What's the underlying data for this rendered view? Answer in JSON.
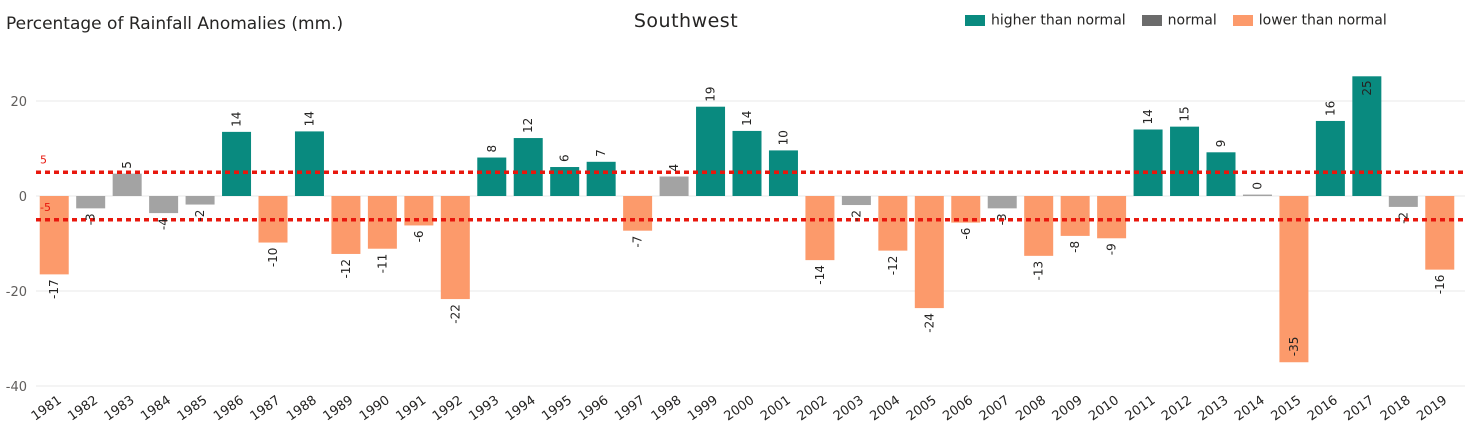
{
  "chart_data": {
    "type": "bar",
    "title": "Southwest",
    "ylabel": "Percentage of Rainfall Anomalies (mm.)",
    "xlabel": "",
    "ylim": [
      -40,
      25
    ],
    "yticks": [
      -40,
      -20,
      0,
      20
    ],
    "grid": true,
    "legend_position": "top-right",
    "legend": [
      {
        "key": "higher",
        "label": "higher than normal",
        "color": "#098A7F"
      },
      {
        "key": "normal",
        "label": "normal",
        "color": "#6B6B6B"
      },
      {
        "key": "lower",
        "label": "lower than normal",
        "color": "#FC9A6B"
      }
    ],
    "category_colors": {
      "higher": "#098A7F",
      "normal": "#A3A3A3",
      "lower": "#FC9A6B"
    },
    "reference_lines": [
      {
        "value": 5,
        "label": "5",
        "color": "#E8170D",
        "style": "dotted"
      },
      {
        "value": -5,
        "label": "-5",
        "color": "#E8170D",
        "style": "dotted"
      }
    ],
    "categories": [
      "1981",
      "1982",
      "1983",
      "1984",
      "1985",
      "1986",
      "1987",
      "1988",
      "1989",
      "1990",
      "1991",
      "1992",
      "1993",
      "1994",
      "1995",
      "1996",
      "1997",
      "1998",
      "1999",
      "2000",
      "2001",
      "2002",
      "2003",
      "2004",
      "2005",
      "2006",
      "2007",
      "2008",
      "2009",
      "2010",
      "2011",
      "2012",
      "2013",
      "2014",
      "2015",
      "2016",
      "2017",
      "2018",
      "2019"
    ],
    "values": [
      -16.5,
      -2.6,
      4.7,
      -3.6,
      -1.8,
      13.5,
      -9.8,
      13.6,
      -12.2,
      -11.1,
      -6.2,
      -21.7,
      8.1,
      12.2,
      6.1,
      7.2,
      -7.3,
      4.1,
      18.8,
      13.7,
      9.6,
      -13.5,
      -1.9,
      -11.5,
      -23.6,
      -5.6,
      -2.6,
      -12.6,
      -8.4,
      -8.9,
      14.0,
      14.6,
      9.2,
      0.3,
      -35.0,
      15.8,
      25.2,
      -2.3,
      -15.5
    ],
    "labels": [
      "-17",
      "-3",
      "5",
      "-4",
      "-2",
      "14",
      "-10",
      "14",
      "-12",
      "-11",
      "-6",
      "-22",
      "8",
      "12",
      "6",
      "7",
      "-7",
      "4",
      "19",
      "14",
      "10",
      "-14",
      "-2",
      "-12",
      "-24",
      "-6",
      "-3",
      "-13",
      "-8",
      "-9",
      "14",
      "15",
      "9",
      "0",
      "-35",
      "16",
      "25",
      "-2",
      "-16"
    ],
    "bar_class": [
      "lower",
      "normal",
      "normal",
      "normal",
      "normal",
      "higher",
      "lower",
      "higher",
      "lower",
      "lower",
      "lower",
      "lower",
      "higher",
      "higher",
      "higher",
      "higher",
      "lower",
      "normal",
      "higher",
      "higher",
      "higher",
      "lower",
      "normal",
      "lower",
      "lower",
      "lower",
      "normal",
      "lower",
      "lower",
      "lower",
      "higher",
      "higher",
      "higher",
      "normal",
      "lower",
      "higher",
      "higher",
      "normal",
      "lower"
    ]
  }
}
